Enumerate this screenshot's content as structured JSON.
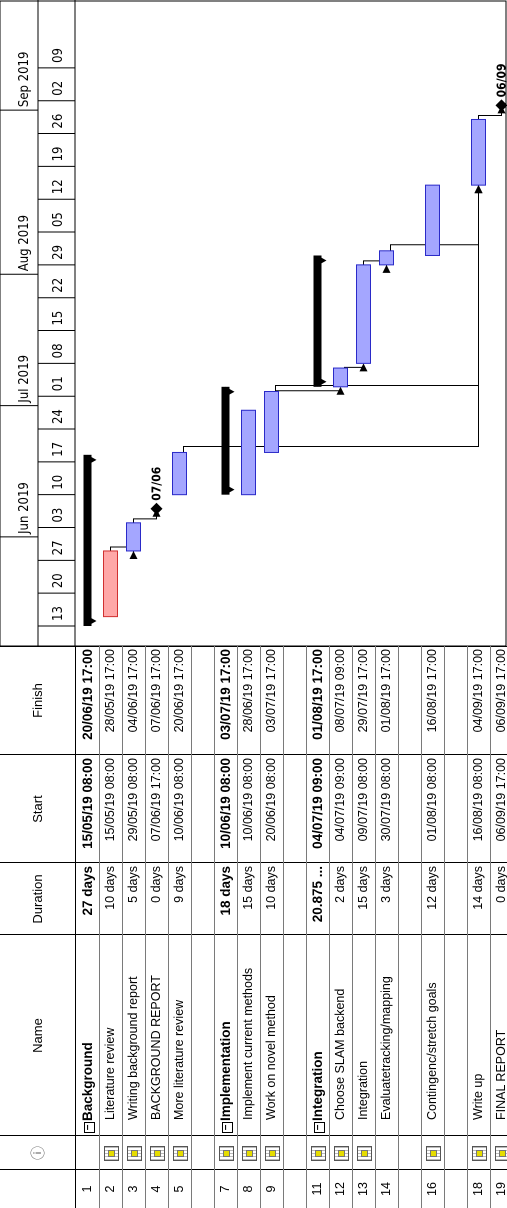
{
  "columns": {
    "info": "ⓘ",
    "name": "Name",
    "duration": "Duration",
    "start": "Start",
    "finish": "Finish"
  },
  "rows": [
    {
      "id": "1",
      "name": "Background",
      "duration": "27 days",
      "start": "15/05/19 08:00",
      "finish": "20/06/19 17:00",
      "summary": true,
      "icon": false
    },
    {
      "id": "2",
      "name": "Literature review",
      "duration": "10 days",
      "start": "15/05/19 08:00",
      "finish": "28/05/19 17:00",
      "summary": false,
      "icon": true
    },
    {
      "id": "3",
      "name": "Writing background report",
      "duration": "5 days",
      "start": "29/05/19 08:00",
      "finish": "04/06/19 17:00",
      "summary": false,
      "icon": true
    },
    {
      "id": "4",
      "name": "BACKGROUND REPORT",
      "duration": "0 days",
      "start": "07/06/19 17:00",
      "finish": "07/06/19 17:00",
      "summary": false,
      "icon": true
    },
    {
      "id": "5",
      "name": "More literature review",
      "duration": "9 days",
      "start": "10/06/19 08:00",
      "finish": "20/06/19 17:00",
      "summary": false,
      "icon": true
    },
    {
      "id": "",
      "name": "",
      "duration": "",
      "start": "",
      "finish": "",
      "summary": false,
      "icon": false
    },
    {
      "id": "7",
      "name": "Implementation",
      "duration": "18 days",
      "start": "10/06/19 08:00",
      "finish": "03/07/19 17:00",
      "summary": true,
      "icon": true
    },
    {
      "id": "8",
      "name": "Implement current methods",
      "duration": "15 days",
      "start": "10/06/19 08:00",
      "finish": "28/06/19 17:00",
      "summary": false,
      "icon": true
    },
    {
      "id": "9",
      "name": "Work on novel method",
      "duration": "10 days",
      "start": "20/06/19 08:00",
      "finish": "03/07/19 17:00",
      "summary": false,
      "icon": true
    },
    {
      "id": "",
      "name": "",
      "duration": "",
      "start": "",
      "finish": "",
      "summary": false,
      "icon": false
    },
    {
      "id": "11",
      "name": "Integration",
      "duration": "20.875 ...",
      "start": "04/07/19 09:00",
      "finish": "01/08/19 17:00",
      "summary": true,
      "icon": true
    },
    {
      "id": "12",
      "name": "Choose SLAM backend",
      "duration": "2 days",
      "start": "04/07/19 09:00",
      "finish": "08/07/19 09:00",
      "summary": false,
      "icon": true
    },
    {
      "id": "13",
      "name": "Integration",
      "duration": "15 days",
      "start": "09/07/19 08:00",
      "finish": "29/07/19 17:00",
      "summary": false,
      "icon": true
    },
    {
      "id": "14",
      "name": "Evaluatetracking/mapping",
      "duration": "3 days",
      "start": "30/07/19 08:00",
      "finish": "01/08/19 17:00",
      "summary": false,
      "icon": false
    },
    {
      "id": "",
      "name": "",
      "duration": "",
      "start": "",
      "finish": "",
      "summary": false,
      "icon": false
    },
    {
      "id": "16",
      "name": "Contingenc/stretch goals",
      "duration": "12 days",
      "start": "01/08/19 08:00",
      "finish": "16/08/19 17:00",
      "summary": false,
      "icon": true
    },
    {
      "id": "",
      "name": "",
      "duration": "",
      "start": "",
      "finish": "",
      "summary": false,
      "icon": false
    },
    {
      "id": "18",
      "name": "Write up",
      "duration": "14 days",
      "start": "16/08/19 08:00",
      "finish": "04/09/19 17:00",
      "summary": false,
      "icon": true
    },
    {
      "id": "19",
      "name": "FINAL REPORT",
      "duration": "0 days",
      "start": "06/09/19 17:00",
      "finish": "06/09/19 17:00",
      "summary": false,
      "icon": true
    }
  ],
  "timeline": {
    "months": [
      {
        "label": "Jun 2019",
        "day": 19
      },
      {
        "label": "Jul 2019",
        "day": 47
      },
      {
        "label": "Aug 2019",
        "day": 75
      },
      {
        "label": "Sep 2019",
        "day": 110
      }
    ],
    "weeks": [
      "13",
      "20",
      "27",
      "03",
      "10",
      "17",
      "24",
      "01",
      "08",
      "15",
      "22",
      "29",
      "05",
      "12",
      "19",
      "26",
      "02",
      "09"
    ]
  },
  "bars": [
    {
      "row": 0,
      "type": "summary",
      "start": 0,
      "end": 36.5
    },
    {
      "row": 1,
      "type": "critical",
      "start": 2,
      "end": 16
    },
    {
      "row": 2,
      "type": "task",
      "start": 16,
      "end": 22
    },
    {
      "row": 3,
      "type": "milestone",
      "at": 25,
      "label": "07/06"
    },
    {
      "row": 4,
      "type": "task",
      "start": 28,
      "end": 37
    },
    {
      "row": 6,
      "type": "summary",
      "start": 28,
      "end": 51
    },
    {
      "row": 7,
      "type": "task",
      "start": 28,
      "end": 46
    },
    {
      "row": 8,
      "type": "task",
      "start": 37,
      "end": 50
    },
    {
      "row": 10,
      "type": "summary",
      "start": 51,
      "end": 79
    },
    {
      "row": 11,
      "type": "task",
      "start": 51,
      "end": 55
    },
    {
      "row": 12,
      "type": "task",
      "start": 56,
      "end": 77
    },
    {
      "row": 13,
      "type": "task",
      "start": 77,
      "end": 80
    },
    {
      "row": 15,
      "type": "task",
      "start": 79,
      "end": 94
    },
    {
      "row": 17,
      "type": "task",
      "start": 94,
      "end": 108
    },
    {
      "row": 18,
      "type": "milestone",
      "at": 111,
      "label": "06/09"
    }
  ],
  "links": [
    {
      "from": 1,
      "to": 2
    },
    {
      "from": 2,
      "to": 3
    },
    {
      "from": 4,
      "to": 17
    },
    {
      "from": 8,
      "to": 11
    },
    {
      "from": 8,
      "to": 17
    },
    {
      "from": 11,
      "to": 12
    },
    {
      "from": 12,
      "to": 13
    },
    {
      "from": 13,
      "to": 17
    },
    {
      "from": 17,
      "to": 18
    }
  ],
  "colors": {
    "task_fill": "#a4a6ff",
    "task_border": "#2a2ac8",
    "critical_fill": "#ffa8a8",
    "critical_border": "#d03030",
    "summary": "#000000"
  }
}
